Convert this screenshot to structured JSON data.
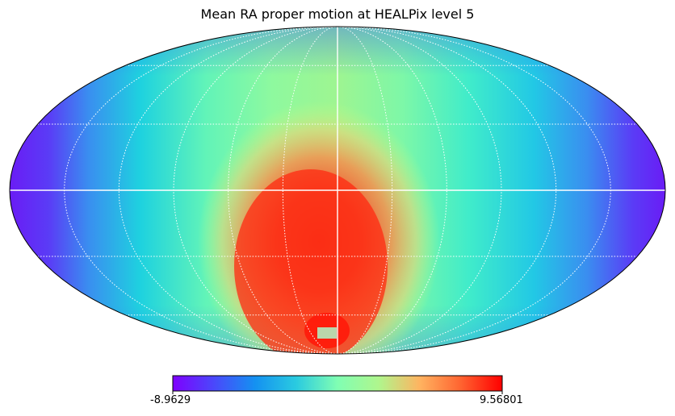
{
  "chart_data": {
    "type": "heatmap",
    "projection": "mollweide",
    "title": "Mean RA proper motion at HEALPix level 5",
    "colormap": "rainbow",
    "colorbar": {
      "orientation": "horizontal",
      "min_label": "-8.9629",
      "max_label": "9.56801",
      "range": [
        -8.9629,
        9.56801
      ]
    },
    "graticule": {
      "style": "dotted",
      "color": "#ffffff",
      "meridian_step_deg": 30,
      "parallel_step_deg": 30,
      "equator_and_central_meridian": "solid"
    },
    "field_description": "Maximum near the bottom-center of the map (southern hemisphere, central meridian); minimum at the far left and right edges; intermediate cyan/green band between."
  }
}
